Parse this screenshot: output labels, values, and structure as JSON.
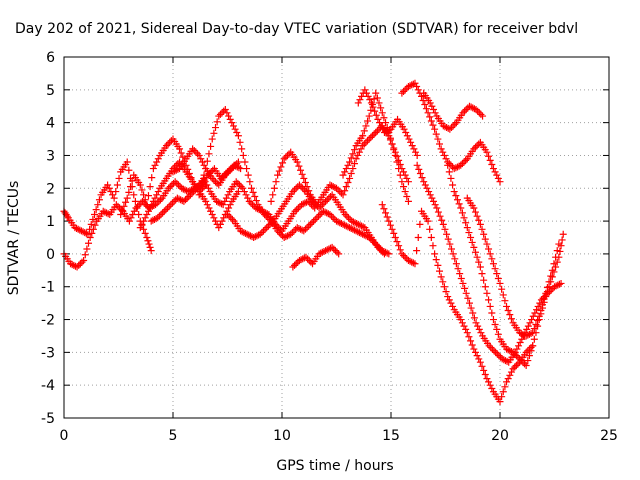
{
  "chart_data": {
    "type": "scatter",
    "title": "Day 202 of 2021, Sidereal Day-to-day VTEC variation (SDTVAR) for receiver bdvl",
    "xlabel": "GPS time / hours",
    "ylabel": "SDTVAR / TECUs",
    "xlim": [
      0,
      25
    ],
    "ylim": [
      -5,
      6
    ],
    "xticks": [
      "0",
      "5",
      "10",
      "15",
      "20",
      "25"
    ],
    "yticks": [
      "-5",
      "-4",
      "-3",
      "-2",
      "-1",
      "0",
      "1",
      "2",
      "3",
      "4",
      "5",
      "6"
    ],
    "grid": true,
    "marker": "+",
    "color": "#ff0000",
    "series": [
      {
        "x": [
          0.0,
          0.3,
          0.6,
          0.9,
          1.2,
          1.5,
          1.8,
          2.1,
          2.4,
          2.7,
          3.0,
          3.3,
          3.6,
          3.9,
          4.2,
          4.5,
          4.8,
          5.1,
          5.4,
          5.7,
          6.0,
          6.3,
          6.6,
          6.9,
          7.2,
          7.5,
          7.8,
          8.1
        ],
        "y": [
          0.0,
          -0.3,
          -0.4,
          -0.2,
          0.5,
          1.0,
          1.3,
          1.2,
          1.5,
          1.3,
          1.0,
          1.4,
          1.6,
          1.4,
          1.5,
          1.7,
          2.0,
          2.2,
          2.0,
          1.9,
          2.0,
          2.1,
          2.4,
          2.6,
          2.3,
          2.5,
          2.7,
          2.6
        ]
      },
      {
        "x": [
          0.0,
          0.2,
          0.5,
          0.8,
          1.1,
          1.4,
          1.7,
          2.0,
          2.3,
          2.6,
          2.9,
          3.2,
          3.5,
          3.8,
          4.0
        ],
        "y": [
          1.3,
          1.1,
          0.8,
          0.7,
          0.6,
          1.2,
          1.8,
          2.1,
          1.7,
          2.5,
          2.8,
          1.8,
          1.0,
          0.5,
          0.1
        ]
      },
      {
        "x": [
          2.6,
          2.9,
          3.2,
          3.5,
          3.8,
          4.1,
          4.4,
          4.7,
          5.0,
          5.3,
          5.6,
          5.9,
          6.2,
          6.5
        ],
        "y": [
          1.2,
          1.7,
          2.4,
          2.1,
          1.5,
          2.6,
          3.0,
          3.3,
          3.5,
          3.2,
          2.7,
          2.2,
          1.9,
          2.1
        ]
      },
      {
        "x": [
          3.5,
          3.8,
          4.1,
          4.4,
          4.7,
          5.0,
          5.3,
          5.6,
          5.9,
          6.2,
          6.5,
          6.8,
          7.1,
          7.4,
          7.7,
          8.0
        ],
        "y": [
          0.8,
          1.2,
          1.6,
          2.0,
          2.3,
          2.6,
          2.8,
          2.5,
          2.2,
          1.9,
          1.6,
          1.2,
          0.8,
          1.2,
          1.6,
          1.9
        ]
      },
      {
        "x": [
          4.0,
          4.3,
          4.6,
          4.9,
          5.2,
          5.5,
          5.8,
          6.1,
          6.4,
          6.7,
          7.0,
          7.3,
          7.6,
          7.9,
          8.2,
          8.5,
          8.8,
          9.1,
          9.4,
          9.7,
          10.0,
          10.3,
          10.6,
          10.9,
          11.2,
          11.5
        ],
        "y": [
          1.0,
          1.1,
          1.3,
          1.5,
          1.7,
          1.6,
          1.8,
          2.0,
          2.3,
          1.9,
          1.6,
          1.5,
          1.9,
          2.2,
          2.0,
          1.6,
          1.4,
          1.3,
          1.2,
          0.9,
          0.7,
          1.0,
          1.3,
          1.5,
          1.6,
          1.4
        ]
      },
      {
        "x": [
          5.0,
          5.3,
          5.6,
          5.9,
          6.2,
          6.5,
          6.8,
          7.1,
          7.4,
          7.7,
          8.0
        ],
        "y": [
          2.5,
          2.6,
          2.9,
          3.2,
          3.0,
          2.6,
          2.3,
          2.1,
          2.4,
          2.6,
          2.8
        ]
      },
      {
        "x": [
          6.2,
          6.5,
          6.8,
          7.1,
          7.4,
          7.7,
          8.0,
          8.3,
          8.6,
          8.9,
          9.2,
          9.5,
          9.8,
          10.1,
          10.4,
          10.7,
          11.0,
          11.3,
          11.6,
          11.9,
          12.2,
          12.5,
          12.8,
          13.1,
          13.4,
          13.7,
          14.0,
          14.3,
          14.6,
          14.9
        ],
        "y": [
          1.8,
          2.6,
          3.5,
          4.2,
          4.4,
          4.0,
          3.6,
          2.8,
          2.0,
          1.5,
          1.2,
          1.0,
          0.7,
          0.5,
          0.6,
          0.8,
          0.7,
          0.9,
          1.1,
          1.3,
          1.2,
          1.0,
          0.9,
          0.8,
          0.7,
          0.6,
          0.5,
          0.3,
          0.1,
          0.0
        ]
      },
      {
        "x": [
          7.5,
          7.8,
          8.1,
          8.4,
          8.7,
          9.0,
          9.3,
          9.6,
          9.9,
          10.2,
          10.5,
          10.8,
          11.1,
          11.4,
          11.7,
          12.0,
          12.3,
          12.6,
          12.9,
          13.2,
          13.5,
          13.8,
          14.1,
          14.4,
          14.7
        ],
        "y": [
          1.2,
          1.0,
          0.7,
          0.6,
          0.5,
          0.6,
          0.8,
          1.0,
          1.3,
          1.6,
          1.9,
          2.1,
          1.9,
          1.6,
          1.4,
          1.6,
          1.8,
          1.5,
          1.2,
          1.0,
          0.9,
          0.8,
          0.5,
          0.2,
          0.0
        ]
      },
      {
        "x": [
          9.5,
          9.8,
          10.1,
          10.4,
          10.7,
          11.0,
          11.3,
          11.6,
          11.9,
          12.2,
          12.5,
          12.8,
          13.1,
          13.4,
          13.7,
          14.0,
          14.3,
          14.6,
          14.9,
          15.2,
          15.5,
          15.8
        ],
        "y": [
          1.6,
          2.4,
          2.9,
          3.1,
          2.8,
          2.3,
          1.8,
          1.5,
          1.8,
          2.1,
          2.0,
          1.8,
          2.3,
          2.9,
          3.3,
          3.5,
          3.7,
          3.9,
          3.6,
          3.1,
          2.6,
          2.2
        ]
      },
      {
        "x": [
          10.5,
          10.8,
          11.1,
          11.4,
          11.7,
          12.0,
          12.3,
          12.6
        ],
        "y": [
          -0.4,
          -0.2,
          -0.1,
          -0.3,
          0.0,
          0.1,
          0.2,
          0.0
        ]
      },
      {
        "x": [
          12.8,
          13.1,
          13.4,
          13.7,
          14.0,
          14.3,
          14.6,
          14.9,
          15.2,
          15.5,
          15.8
        ],
        "y": [
          2.4,
          2.8,
          3.3,
          3.6,
          4.2,
          4.9,
          4.3,
          3.7,
          3.0,
          2.2,
          1.6
        ]
      },
      {
        "x": [
          13.5,
          13.8,
          14.1,
          14.4,
          14.7,
          15.0,
          15.3,
          15.6,
          15.9,
          16.2
        ],
        "y": [
          4.6,
          5.0,
          4.6,
          4.1,
          3.7,
          3.8,
          4.1,
          3.8,
          3.4,
          3.0
        ]
      },
      {
        "x": [
          14.6,
          14.9,
          15.2,
          15.5,
          15.8,
          16.1,
          16.4,
          16.7,
          17.0,
          17.3,
          17.6,
          17.9,
          18.2,
          18.5,
          18.8,
          19.1,
          19.4,
          19.7,
          20.0,
          20.3,
          20.6,
          20.9,
          21.2,
          21.5
        ],
        "y": [
          1.5,
          1.0,
          0.5,
          0.0,
          -0.2,
          -0.3,
          1.3,
          1.0,
          0.0,
          -0.7,
          -1.3,
          -1.7,
          -2.0,
          -2.4,
          -2.9,
          -3.3,
          -3.8,
          -4.2,
          -4.5,
          -3.9,
          -3.5,
          -3.3,
          -3.0,
          -2.8
        ]
      },
      {
        "x": [
          15.5,
          15.8,
          16.1,
          16.4,
          16.7,
          17.0,
          17.3,
          17.6,
          17.9,
          18.2,
          18.5,
          18.8,
          19.1,
          19.4,
          19.7,
          20.0
        ],
        "y": [
          4.9,
          5.1,
          5.2,
          4.8,
          4.3,
          3.8,
          3.2,
          2.8,
          2.6,
          2.7,
          2.9,
          3.2,
          3.4,
          3.1,
          2.6,
          2.2
        ]
      },
      {
        "x": [
          16.2,
          16.5,
          16.8,
          17.1,
          17.4,
          17.7,
          18.0,
          18.3,
          18.6,
          18.9,
          19.2,
          19.5,
          19.8,
          20.1,
          20.4,
          20.7,
          21.0,
          21.3,
          21.6,
          21.9,
          22.2,
          22.5,
          22.8
        ],
        "y": [
          2.7,
          2.2,
          1.8,
          1.4,
          0.9,
          0.3,
          -0.3,
          -0.9,
          -1.5,
          -2.1,
          -2.5,
          -2.8,
          -3.0,
          -3.2,
          -3.3,
          -3.0,
          -2.6,
          -2.2,
          -1.8,
          -1.4,
          -1.2,
          -1.0,
          -0.9
        ]
      },
      {
        "x": [
          16.5,
          16.8,
          17.1,
          17.4,
          17.7,
          18.0,
          18.3,
          18.6,
          18.9,
          19.2
        ],
        "y": [
          4.9,
          4.6,
          4.2,
          3.9,
          3.8,
          4.0,
          4.3,
          4.5,
          4.4,
          4.2
        ]
      },
      {
        "x": [
          17.6,
          17.9,
          18.2,
          18.5,
          18.8,
          19.1,
          19.4,
          19.7,
          20.0,
          20.3,
          20.6,
          20.9,
          21.2,
          21.5,
          21.8,
          22.1,
          22.4,
          22.7,
          22.9
        ],
        "y": [
          2.7,
          1.9,
          1.4,
          0.8,
          0.2,
          -0.4,
          -1.2,
          -2.0,
          -2.6,
          -2.9,
          -3.0,
          -3.2,
          -3.4,
          -2.8,
          -2.0,
          -1.3,
          -0.7,
          -0.1,
          0.6
        ]
      },
      {
        "x": [
          18.5,
          18.8,
          19.1,
          19.4,
          19.7,
          20.0,
          20.3,
          20.6,
          20.9,
          21.2,
          21.5,
          21.8,
          22.1,
          22.4,
          22.7
        ],
        "y": [
          1.7,
          1.4,
          0.9,
          0.3,
          -0.3,
          -0.9,
          -1.6,
          -2.1,
          -2.4,
          -2.5,
          -2.4,
          -1.9,
          -1.2,
          -0.5,
          0.3
        ]
      }
    ]
  }
}
